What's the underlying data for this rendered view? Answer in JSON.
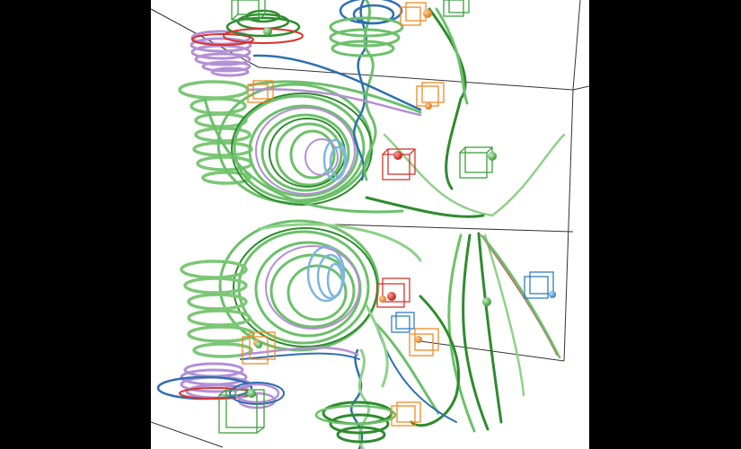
{
  "scene": {
    "kind": "3d-streamline-visualization",
    "background": "#ffffff",
    "letterbox_color": "#000000",
    "palette": {
      "green_light": "#8fd18a",
      "green_dark": "#2e8b2e",
      "purple": "#b48fd6",
      "blue": "#2f6fb0",
      "light_blue": "#7fb6de",
      "red": "#d8342c",
      "orange": "#f08a24",
      "box_green": "#3aa23a",
      "box_blue": "#2f7fc0"
    },
    "icons": [
      "seed-box",
      "seed-sphere"
    ]
  }
}
